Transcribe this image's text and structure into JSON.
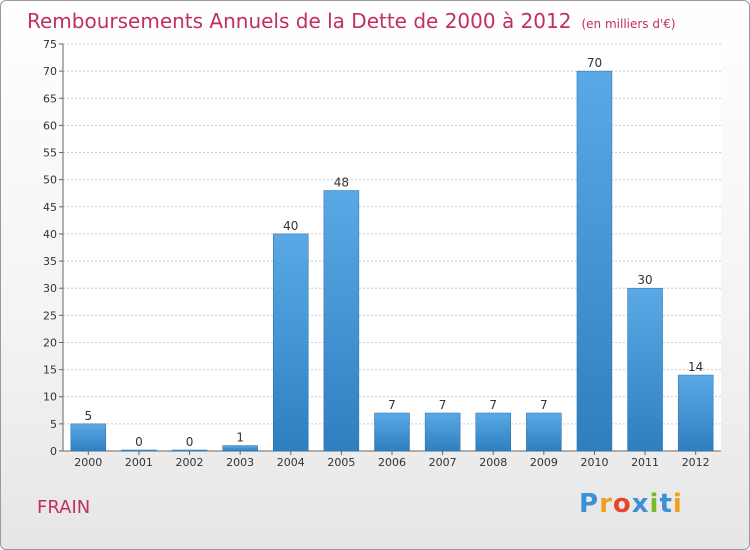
{
  "title": "Remboursements Annuels de la Dette de 2000 à 2012",
  "unit": "(en milliers d'€)",
  "place": "FRAIN",
  "logo": {
    "letters": [
      "P",
      "r",
      "o",
      "x",
      "i",
      "t",
      "i"
    ],
    "colors": [
      "#3d8fd6",
      "#f0a020",
      "#e8452e",
      "#3d8fd6",
      "#7ab82e",
      "#3d8fd6",
      "#f0a020"
    ]
  },
  "colors": {
    "bar_top": "#5aa9e6",
    "bar_bottom": "#2f7fc0",
    "title": "#c0305a"
  },
  "chart_data": {
    "type": "bar",
    "categories": [
      "2000",
      "2001",
      "2002",
      "2003",
      "2004",
      "2005",
      "2006",
      "2007",
      "2008",
      "2009",
      "2010",
      "2011",
      "2012"
    ],
    "values": [
      5,
      0,
      0,
      1,
      40,
      48,
      7,
      7,
      7,
      7,
      70,
      30,
      14
    ],
    "title": "Remboursements Annuels de la Dette de 2000 à 2012",
    "subtitle": "(en milliers d'€)",
    "xlabel": "",
    "ylabel": "",
    "ylim": [
      0,
      75
    ],
    "yticks": [
      0,
      5,
      10,
      15,
      20,
      25,
      30,
      35,
      40,
      45,
      50,
      55,
      60,
      65,
      70,
      75
    ],
    "grid": true,
    "legend": "none"
  }
}
